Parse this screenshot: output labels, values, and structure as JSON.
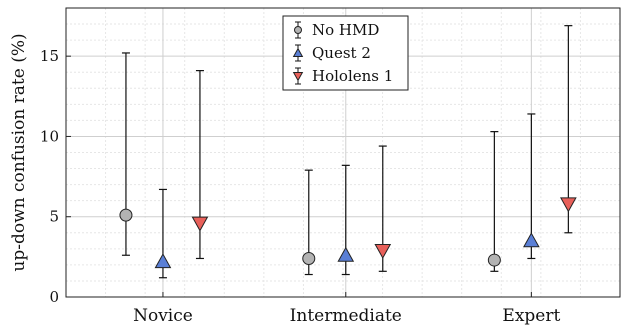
{
  "chart_data": {
    "type": "scatter",
    "ylabel": "up-down confusion rate (%)",
    "ylim": [
      0,
      18
    ],
    "yticks": [
      0,
      5,
      10,
      15
    ],
    "categories": [
      "Novice",
      "Intermediate",
      "Expert"
    ],
    "grid": true,
    "legend_position": "top-center",
    "series": [
      {
        "name": "No HMD",
        "marker": "circle",
        "color": "#b3b3b3",
        "values": [
          5.1,
          2.4,
          2.3
        ],
        "lower": [
          2.6,
          1.4,
          1.6
        ],
        "upper": [
          15.2,
          7.9,
          10.3
        ]
      },
      {
        "name": "Quest 2",
        "marker": "triangle-up",
        "color": "#5a7fd6",
        "values": [
          2.2,
          2.6,
          3.5
        ],
        "lower": [
          1.2,
          1.4,
          2.4
        ],
        "upper": [
          6.7,
          8.2,
          11.4
        ]
      },
      {
        "name": "Hololens 1",
        "marker": "triangle-down",
        "color": "#e8605a",
        "values": [
          4.6,
          2.9,
          5.8
        ],
        "lower": [
          2.4,
          1.6,
          4.0
        ],
        "upper": [
          14.1,
          9.4,
          16.9
        ]
      }
    ]
  }
}
